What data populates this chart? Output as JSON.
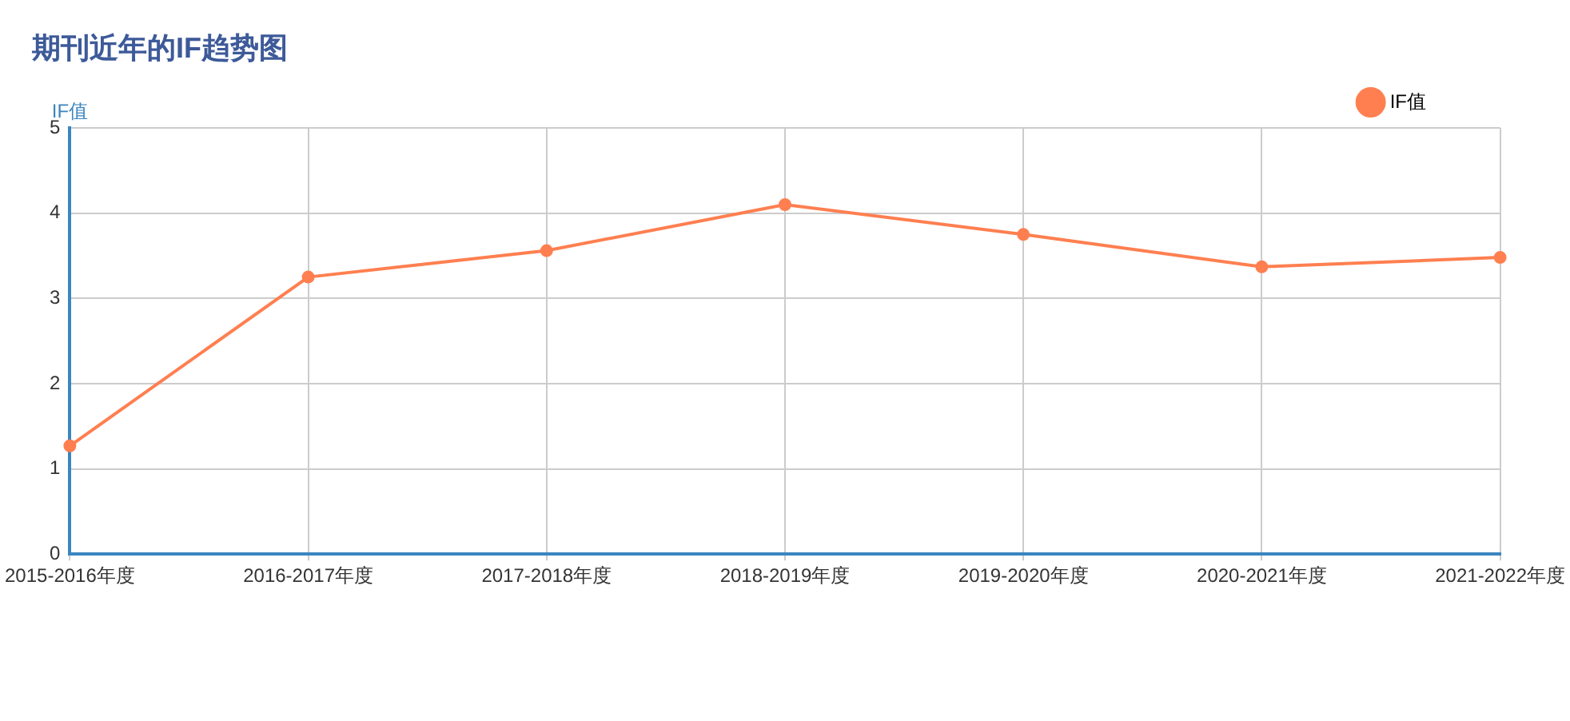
{
  "chart_data": {
    "type": "line",
    "title": "期刊近年的IF趋势图",
    "ylabel": "IF值",
    "categories": [
      "2015-2016年度",
      "2016-2017年度",
      "2017-2018年度",
      "2018-2019年度",
      "2019-2020年度",
      "2020-2021年度",
      "2021-2022年度"
    ],
    "series": [
      {
        "name": "IF值",
        "color": "#ff7f50",
        "values": [
          1.27,
          3.25,
          3.56,
          4.1,
          3.75,
          3.37,
          3.48
        ]
      }
    ],
    "ylim": [
      0,
      5
    ],
    "yticks": [
      0,
      1,
      2,
      3,
      4,
      5
    ],
    "grid": true,
    "legend": "top right",
    "marker": "circle",
    "line_style": "solid"
  }
}
